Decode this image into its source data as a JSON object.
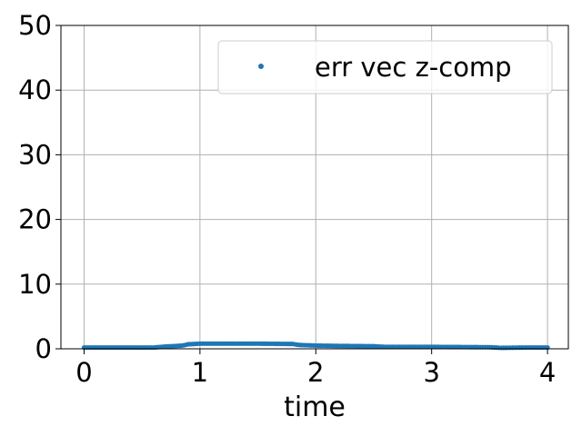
{
  "chart_data": {
    "type": "scatter",
    "title": "",
    "xlabel": "time",
    "ylabel": "",
    "xlim": [
      -0.2,
      4.18
    ],
    "ylim": [
      0,
      50
    ],
    "xticks": [
      "0",
      "1",
      "2",
      "3",
      "4"
    ],
    "yticks": [
      "0",
      "10",
      "20",
      "30",
      "40",
      "50"
    ],
    "grid": true,
    "legend_position": "top-right",
    "series": [
      {
        "name": "err vec z-comp",
        "color": "#1f77b4",
        "marker": "point",
        "points": [
          [
            0.0,
            0.2
          ],
          [
            0.6,
            0.2
          ],
          [
            0.7,
            0.35
          ],
          [
            0.85,
            0.5
          ],
          [
            0.9,
            0.7
          ],
          [
            1.0,
            0.8
          ],
          [
            1.5,
            0.8
          ],
          [
            1.8,
            0.75
          ],
          [
            1.85,
            0.6
          ],
          [
            2.0,
            0.5
          ],
          [
            2.2,
            0.45
          ],
          [
            2.5,
            0.4
          ],
          [
            2.6,
            0.3
          ],
          [
            3.0,
            0.3
          ],
          [
            3.5,
            0.25
          ],
          [
            3.6,
            0.15
          ],
          [
            3.8,
            0.2
          ],
          [
            4.0,
            0.2
          ]
        ]
      }
    ]
  }
}
